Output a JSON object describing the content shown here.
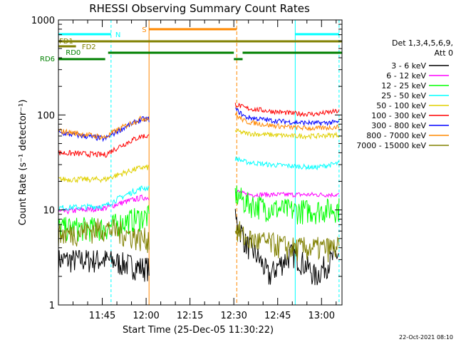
{
  "chart_data": {
    "type": "line",
    "title": "RHESSI Observing Summary Count Rates",
    "xlabel": "Start Time (25-Dec-05 11:30:22)",
    "ylabel": "Count Rate (s⁻¹ detector⁻¹)",
    "yscale": "log",
    "ylim": [
      1,
      1000
    ],
    "xlim_minutes": [
      0,
      97
    ],
    "y_ticks": [
      {
        "value": 1,
        "label": "1"
      },
      {
        "value": 10,
        "label": "10"
      },
      {
        "value": 100,
        "label": "100"
      },
      {
        "value": 1000,
        "label": "1000"
      }
    ],
    "x_ticks": [
      {
        "minute": 15,
        "label": "11:45"
      },
      {
        "minute": 30,
        "label": "12:00"
      },
      {
        "minute": 45,
        "label": "12:15"
      },
      {
        "minute": 60,
        "label": "12:30"
      },
      {
        "minute": 75,
        "label": "12:45"
      },
      {
        "minute": 90,
        "label": "13:00"
      }
    ],
    "legend_header": [
      "Det 1,3,4,5,6,9,",
      "Att 0"
    ],
    "legend_position": "right",
    "series": [
      {
        "name": "3 - 6 keV",
        "color": "#000000",
        "seg1": [
          3.0,
          3.0,
          2.5
        ],
        "seg2": [
          8,
          4.5,
          2.0,
          3.5,
          2.0,
          3.5
        ]
      },
      {
        "name": "6 - 12 keV",
        "color": "#ff00ff",
        "seg1": [
          9.5,
          10.5,
          13.5
        ],
        "seg2": [
          16,
          14.5,
          14.5,
          14.5,
          14.5,
          14.5
        ]
      },
      {
        "name": "12 - 25 keV",
        "color": "#00ff00",
        "seg1": [
          6.5,
          6.5,
          8.5
        ],
        "seg2": [
          15,
          12,
          10.5,
          10.0,
          10.0,
          10.5
        ]
      },
      {
        "name": "25 - 50 keV",
        "color": "#00ffff",
        "seg1": [
          10.5,
          11,
          17
        ],
        "seg2": [
          35,
          32,
          30,
          29,
          28,
          31
        ]
      },
      {
        "name": "50 - 100 keV",
        "color": "#e0d000",
        "seg1": [
          21,
          21,
          28
        ],
        "seg2": [
          68,
          64,
          62,
          60,
          60,
          62
        ]
      },
      {
        "name": "100 - 300 keV",
        "color": "#ff0000",
        "seg1": [
          40,
          38,
          60
        ],
        "seg2": [
          130,
          118,
          110,
          104,
          102,
          110
        ]
      },
      {
        "name": "300 - 800 keV",
        "color": "#0000ff",
        "seg1": [
          65,
          56,
          90
        ],
        "seg2": [
          115,
          95,
          88,
          84,
          82,
          84
        ]
      },
      {
        "name": "800 - 7000 keV",
        "color": "#ff8800",
        "seg1": [
          68,
          58,
          92
        ],
        "seg2": [
          100,
          85,
          78,
          74,
          72,
          75
        ]
      },
      {
        "name": "7000 - 15000 keV",
        "color": "#808000",
        "seg1": [
          5.5,
          6.5,
          5.0
        ],
        "seg2": [
          6.5,
          5.0,
          4.5,
          4.0,
          4.0,
          4.0
        ]
      }
    ],
    "annotations": [
      {
        "label": "S",
        "kind": "SAA",
        "color": "#ff8800"
      },
      {
        "label": "N",
        "kind": "Night",
        "color": "#00ffff"
      },
      {
        "label": "FD1",
        "kind": "Fast data 1",
        "color": "#808000"
      },
      {
        "label": "FD2",
        "kind": "Fast data 2",
        "color": "#808000"
      },
      {
        "label": "RD0",
        "kind": "Decimation 0",
        "color": "#008000"
      },
      {
        "label": "RD6",
        "kind": "Decimation 6",
        "color": "#008000"
      }
    ],
    "footer": "22-Oct-2021 08:10"
  }
}
